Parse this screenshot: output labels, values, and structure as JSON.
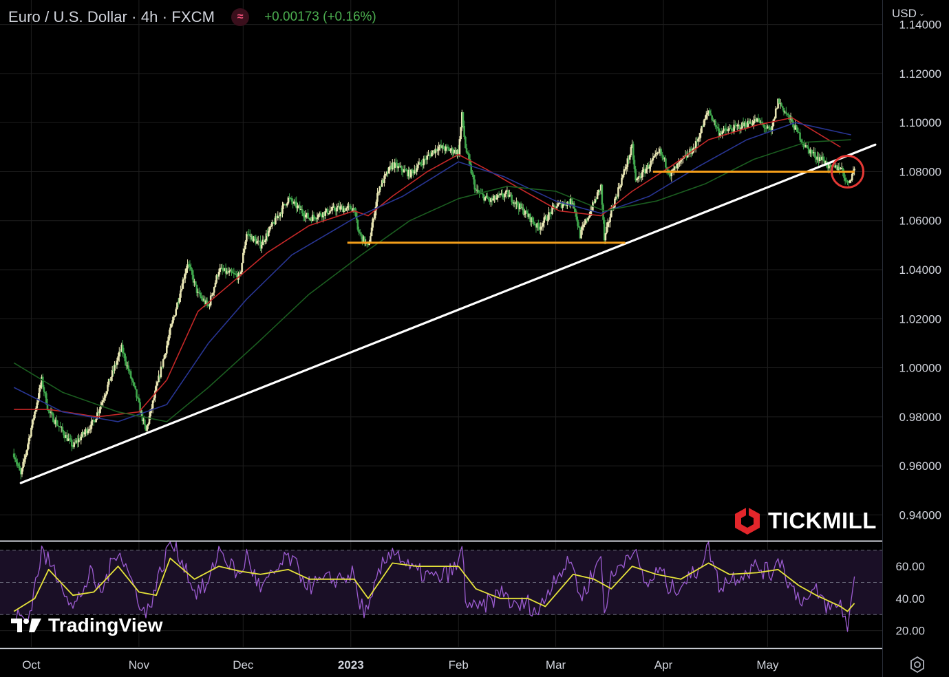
{
  "header": {
    "symbol": "Euro / U.S. Dollar · 4h · FXCM",
    "change": "+0.00173 (+0.16%)",
    "indicator_icon": "wave-icon"
  },
  "price_scale": {
    "currency": "USD",
    "ticks": [
      "1.14000",
      "1.12000",
      "1.10000",
      "1.08000",
      "1.06000",
      "1.04000",
      "1.02000",
      "1.00000",
      "0.98000",
      "0.96000",
      "0.94000"
    ]
  },
  "oscillator_scale": {
    "ticks": [
      "60.00",
      "40.00",
      "20.00"
    ]
  },
  "time_axis": {
    "labels": [
      "Oct",
      "Nov",
      "Dec",
      "2023",
      "Feb",
      "Mar",
      "Apr",
      "May"
    ]
  },
  "branding": {
    "broker": "TICKMILL",
    "platform": "TradingView"
  },
  "colors": {
    "up_candle": "#e9e6b4",
    "down_candle": "#3fa64c",
    "ma_fast": "#c62828",
    "ma_mid": "#283593",
    "ma_slow": "#1b5e20",
    "trendline": "#ffffff",
    "support": "#f59f1a",
    "highlight": "#e53935",
    "rsi": "#9c5cd1",
    "rsi_signal": "#e6e33a",
    "change": "#4caf50"
  },
  "chart_data": [
    {
      "type": "line",
      "title": "Euro / U.S. Dollar · 4h · FXCM",
      "x": [
        "Oct",
        "Nov",
        "Dec",
        "2023",
        "Feb",
        "Mar",
        "Apr",
        "May"
      ],
      "ylim": [
        0.93,
        1.15
      ],
      "y_scale": "linear",
      "grid": true,
      "series": [
        {
          "name": "",
          "kind": "price",
          "points": [
            [
              "2022-09-26",
              0.965
            ],
            [
              "2022-09-28",
              0.956
            ],
            [
              "2022-10-04",
              0.995
            ],
            [
              "2022-10-06",
              0.982
            ],
            [
              "2022-10-13",
              0.968
            ],
            [
              "2022-10-19",
              0.978
            ],
            [
              "2022-10-21",
              0.985
            ],
            [
              "2022-10-27",
              1.008
            ],
            [
              "2022-10-31",
              0.99
            ],
            [
              "2022-11-03",
              0.974
            ],
            [
              "2022-11-10",
              1.015
            ],
            [
              "2022-11-15",
              1.043
            ],
            [
              "2022-11-18",
              1.03
            ],
            [
              "2022-11-21",
              1.025
            ],
            [
              "2022-11-24",
              1.04
            ],
            [
              "2022-11-30",
              1.037
            ],
            [
              "2022-12-02",
              1.055
            ],
            [
              "2022-12-06",
              1.05
            ],
            [
              "2022-12-14",
              1.069
            ],
            [
              "2022-12-20",
              1.061
            ],
            [
              "2022-12-28",
              1.065
            ],
            [
              "2023-01-02",
              1.065
            ],
            [
              "2023-01-03",
              1.056
            ],
            [
              "2023-01-06",
              1.049
            ],
            [
              "2023-01-09",
              1.073
            ],
            [
              "2023-01-13",
              1.083
            ],
            [
              "2023-01-18",
              1.079
            ],
            [
              "2023-01-26",
              1.09
            ],
            [
              "2023-02-01",
              1.088
            ],
            [
              "2023-02-02",
              1.103
            ],
            [
              "2023-02-03",
              1.09
            ],
            [
              "2023-02-06",
              1.072
            ],
            [
              "2023-02-10",
              1.068
            ],
            [
              "2023-02-15",
              1.071
            ],
            [
              "2023-02-21",
              1.062
            ],
            [
              "2023-02-24",
              1.057
            ],
            [
              "2023-03-01",
              1.066
            ],
            [
              "2023-03-06",
              1.068
            ],
            [
              "2023-03-08",
              1.054
            ],
            [
              "2023-03-14",
              1.074
            ],
            [
              "2023-03-15",
              1.052
            ],
            [
              "2023-03-17",
              1.064
            ],
            [
              "2023-03-23",
              1.09
            ],
            [
              "2023-03-24",
              1.076
            ],
            [
              "2023-03-31",
              1.088
            ],
            [
              "2023-04-03",
              1.079
            ],
            [
              "2023-04-10",
              1.09
            ],
            [
              "2023-04-14",
              1.105
            ],
            [
              "2023-04-17",
              1.096
            ],
            [
              "2023-04-20",
              1.097
            ],
            [
              "2023-04-28",
              1.101
            ],
            [
              "2023-05-02",
              1.096
            ],
            [
              "2023-05-04",
              1.109
            ],
            [
              "2023-05-08",
              1.1
            ],
            [
              "2023-05-12",
              1.09
            ],
            [
              "2023-05-15",
              1.086
            ],
            [
              "2023-05-17",
              1.085
            ],
            [
              "2023-05-19",
              1.081
            ],
            [
              "2023-05-22",
              1.082
            ],
            [
              "2023-05-24",
              1.075
            ],
            [
              "2023-05-26",
              1.081
            ]
          ]
        },
        {
          "name": "",
          "kind": "ma_fast",
          "points": [
            [
              "2022-09-26",
              0.983
            ],
            [
              "2022-10-06",
              0.983
            ],
            [
              "2022-10-20",
              0.98
            ],
            [
              "2022-11-01",
              0.982
            ],
            [
              "2022-11-09",
              0.995
            ],
            [
              "2022-11-18",
              1.023
            ],
            [
              "2022-11-28",
              1.035
            ],
            [
              "2022-12-08",
              1.047
            ],
            [
              "2022-12-20",
              1.058
            ],
            [
              "2023-01-02",
              1.064
            ],
            [
              "2023-01-06",
              1.062
            ],
            [
              "2023-01-13",
              1.07
            ],
            [
              "2023-01-23",
              1.08
            ],
            [
              "2023-02-01",
              1.087
            ],
            [
              "2023-02-09",
              1.081
            ],
            [
              "2023-02-20",
              1.072
            ],
            [
              "2023-03-02",
              1.064
            ],
            [
              "2023-03-14",
              1.062
            ],
            [
              "2023-03-23",
              1.072
            ],
            [
              "2023-04-03",
              1.082
            ],
            [
              "2023-04-14",
              1.093
            ],
            [
              "2023-04-28",
              1.099
            ],
            [
              "2023-05-08",
              1.102
            ],
            [
              "2023-05-15",
              1.096
            ],
            [
              "2023-05-22",
              1.09
            ]
          ]
        },
        {
          "name": "",
          "kind": "ma_mid",
          "points": [
            [
              "2022-09-26",
              0.992
            ],
            [
              "2022-10-10",
              0.982
            ],
            [
              "2022-10-26",
              0.978
            ],
            [
              "2022-11-09",
              0.985
            ],
            [
              "2022-11-21",
              1.01
            ],
            [
              "2022-12-02",
              1.028
            ],
            [
              "2022-12-15",
              1.046
            ],
            [
              "2023-01-02",
              1.061
            ],
            [
              "2023-01-16",
              1.07
            ],
            [
              "2023-02-01",
              1.084
            ],
            [
              "2023-02-14",
              1.078
            ],
            [
              "2023-03-01",
              1.068
            ],
            [
              "2023-03-14",
              1.063
            ],
            [
              "2023-03-28",
              1.07
            ],
            [
              "2023-04-11",
              1.082
            ],
            [
              "2023-04-25",
              1.093
            ],
            [
              "2023-05-09",
              1.1
            ],
            [
              "2023-05-25",
              1.095
            ]
          ]
        },
        {
          "name": "",
          "kind": "ma_slow",
          "points": [
            [
              "2022-09-26",
              1.002
            ],
            [
              "2022-10-10",
              0.99
            ],
            [
              "2022-10-26",
              0.982
            ],
            [
              "2022-11-09",
              0.978
            ],
            [
              "2022-11-21",
              0.992
            ],
            [
              "2022-12-05",
              1.01
            ],
            [
              "2022-12-20",
              1.03
            ],
            [
              "2023-01-04",
              1.046
            ],
            [
              "2023-01-18",
              1.06
            ],
            [
              "2023-02-01",
              1.069
            ],
            [
              "2023-02-15",
              1.074
            ],
            [
              "2023-03-01",
              1.072
            ],
            [
              "2023-03-15",
              1.064
            ],
            [
              "2023-03-30",
              1.068
            ],
            [
              "2023-04-13",
              1.075
            ],
            [
              "2023-04-27",
              1.085
            ],
            [
              "2023-05-12",
              1.092
            ],
            [
              "2023-05-25",
              1.093
            ]
          ]
        }
      ],
      "annotations": [
        {
          "type": "trendline",
          "from": [
            "2022-09-28",
            0.953
          ],
          "to": [
            "2023-06-01",
            1.091
          ]
        },
        {
          "type": "support",
          "from": [
            "2022-12-31",
            1.051
          ],
          "to": [
            "2023-03-21",
            1.051
          ]
        },
        {
          "type": "support",
          "from": [
            "2023-03-29",
            1.08
          ],
          "to": [
            "2023-05-26",
            1.08
          ]
        },
        {
          "type": "circle",
          "center": [
            "2023-05-24",
            1.08
          ]
        }
      ]
    },
    {
      "type": "line",
      "title": "",
      "x": [
        "Oct",
        "Nov",
        "Dec",
        "2023",
        "Feb",
        "Mar",
        "Apr",
        "May"
      ],
      "ylim": [
        10,
        75
      ],
      "grid": true,
      "guide_levels": [
        70,
        50,
        30
      ],
      "series": [
        {
          "name": "",
          "kind": "rsi",
          "points": [
            [
              "2022-09-26",
              30
            ],
            [
              "2022-09-30",
              26
            ],
            [
              "2022-10-04",
              69
            ],
            [
              "2022-10-10",
              50
            ],
            [
              "2022-10-13",
              33
            ],
            [
              "2022-10-18",
              55
            ],
            [
              "2022-10-21",
              43
            ],
            [
              "2022-10-26",
              72
            ],
            [
              "2022-10-31",
              45
            ],
            [
              "2022-11-03",
              29
            ],
            [
              "2022-11-07",
              55
            ],
            [
              "2022-11-10",
              75
            ],
            [
              "2022-11-14",
              62
            ],
            [
              "2022-11-17",
              44
            ],
            [
              "2022-11-21",
              48
            ],
            [
              "2022-11-24",
              71
            ],
            [
              "2022-11-30",
              53
            ],
            [
              "2022-12-02",
              67
            ],
            [
              "2022-12-06",
              45
            ],
            [
              "2022-12-14",
              66
            ],
            [
              "2022-12-20",
              48
            ],
            [
              "2022-12-27",
              52
            ],
            [
              "2023-01-02",
              55
            ],
            [
              "2023-01-03",
              39
            ],
            [
              "2023-01-06",
              30
            ],
            [
              "2023-01-09",
              55
            ],
            [
              "2023-01-13",
              72
            ],
            [
              "2023-01-18",
              58
            ],
            [
              "2023-01-26",
              52
            ],
            [
              "2023-02-01",
              60
            ],
            [
              "2023-02-02",
              74
            ],
            [
              "2023-02-03",
              40
            ],
            [
              "2023-02-06",
              32
            ],
            [
              "2023-02-10",
              38
            ],
            [
              "2023-02-14",
              45
            ],
            [
              "2023-02-17",
              34
            ],
            [
              "2023-02-21",
              37
            ],
            [
              "2023-02-24",
              31
            ],
            [
              "2023-03-01",
              55
            ],
            [
              "2023-03-06",
              63
            ],
            [
              "2023-03-08",
              39
            ],
            [
              "2023-03-14",
              66
            ],
            [
              "2023-03-15",
              33
            ],
            [
              "2023-03-17",
              52
            ],
            [
              "2023-03-23",
              72
            ],
            [
              "2023-03-27",
              48
            ],
            [
              "2023-03-31",
              58
            ],
            [
              "2023-04-03",
              45
            ],
            [
              "2023-04-10",
              55
            ],
            [
              "2023-04-14",
              73
            ],
            [
              "2023-04-17",
              48
            ],
            [
              "2023-04-20",
              52
            ],
            [
              "2023-04-28",
              60
            ],
            [
              "2023-05-02",
              55
            ],
            [
              "2023-05-04",
              67
            ],
            [
              "2023-05-08",
              46
            ],
            [
              "2023-05-12",
              38
            ],
            [
              "2023-05-15",
              44
            ],
            [
              "2023-05-19",
              33
            ],
            [
              "2023-05-22",
              37
            ],
            [
              "2023-05-24",
              23
            ],
            [
              "2023-05-26",
              50
            ]
          ]
        },
        {
          "name": "",
          "kind": "rsi_signal",
          "points": [
            [
              "2022-09-26",
              32
            ],
            [
              "2022-10-02",
              40
            ],
            [
              "2022-10-06",
              58
            ],
            [
              "2022-10-13",
              42
            ],
            [
              "2022-10-19",
              44
            ],
            [
              "2022-10-26",
              60
            ],
            [
              "2022-11-01",
              44
            ],
            [
              "2022-11-06",
              42
            ],
            [
              "2022-11-10",
              65
            ],
            [
              "2022-11-17",
              52
            ],
            [
              "2022-11-24",
              60
            ],
            [
              "2022-11-30",
              57
            ],
            [
              "2022-12-06",
              55
            ],
            [
              "2022-12-14",
              58
            ],
            [
              "2022-12-20",
              52
            ],
            [
              "2023-01-02",
              52
            ],
            [
              "2023-01-06",
              40
            ],
            [
              "2023-01-13",
              62
            ],
            [
              "2023-01-20",
              60
            ],
            [
              "2023-02-01",
              60
            ],
            [
              "2023-02-06",
              46
            ],
            [
              "2023-02-13",
              40
            ],
            [
              "2023-02-21",
              40
            ],
            [
              "2023-02-26",
              35
            ],
            [
              "2023-03-06",
              55
            ],
            [
              "2023-03-12",
              52
            ],
            [
              "2023-03-17",
              46
            ],
            [
              "2023-03-23",
              60
            ],
            [
              "2023-03-30",
              55
            ],
            [
              "2023-04-06",
              52
            ],
            [
              "2023-04-14",
              62
            ],
            [
              "2023-04-20",
              55
            ],
            [
              "2023-04-28",
              56
            ],
            [
              "2023-05-04",
              58
            ],
            [
              "2023-05-10",
              48
            ],
            [
              "2023-05-15",
              42
            ],
            [
              "2023-05-22",
              35
            ],
            [
              "2023-05-24",
              32
            ],
            [
              "2023-05-26",
              37
            ]
          ]
        }
      ]
    }
  ]
}
